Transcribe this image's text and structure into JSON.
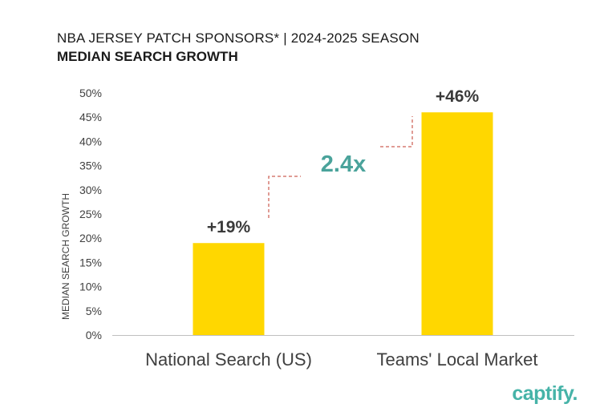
{
  "title": "NBA JERSEY PATCH SPONSORS* | 2024-2025 SEASON",
  "subtitle": "MEDIAN SEARCH GROWTH",
  "brand": "captify.",
  "colors": {
    "bar": "#FFD700",
    "accent": "#4aa39b",
    "connector": "#c0392b",
    "axis": "#bfbfbf",
    "text": "#404040"
  },
  "chart_data": {
    "type": "bar",
    "categories": [
      "National Search (US)",
      "Teams' Local Market"
    ],
    "values": [
      19,
      46
    ],
    "data_labels": [
      "+19%",
      "+46%"
    ],
    "ylabel": "MEDIAN SEARCH GROWTH",
    "ylim": [
      0,
      50
    ],
    "yticks": [
      "0%",
      "5%",
      "10%",
      "15%",
      "20%",
      "25%",
      "30%",
      "35%",
      "40%",
      "45%",
      "50%"
    ],
    "grid": false,
    "annotation": "2.4x"
  }
}
